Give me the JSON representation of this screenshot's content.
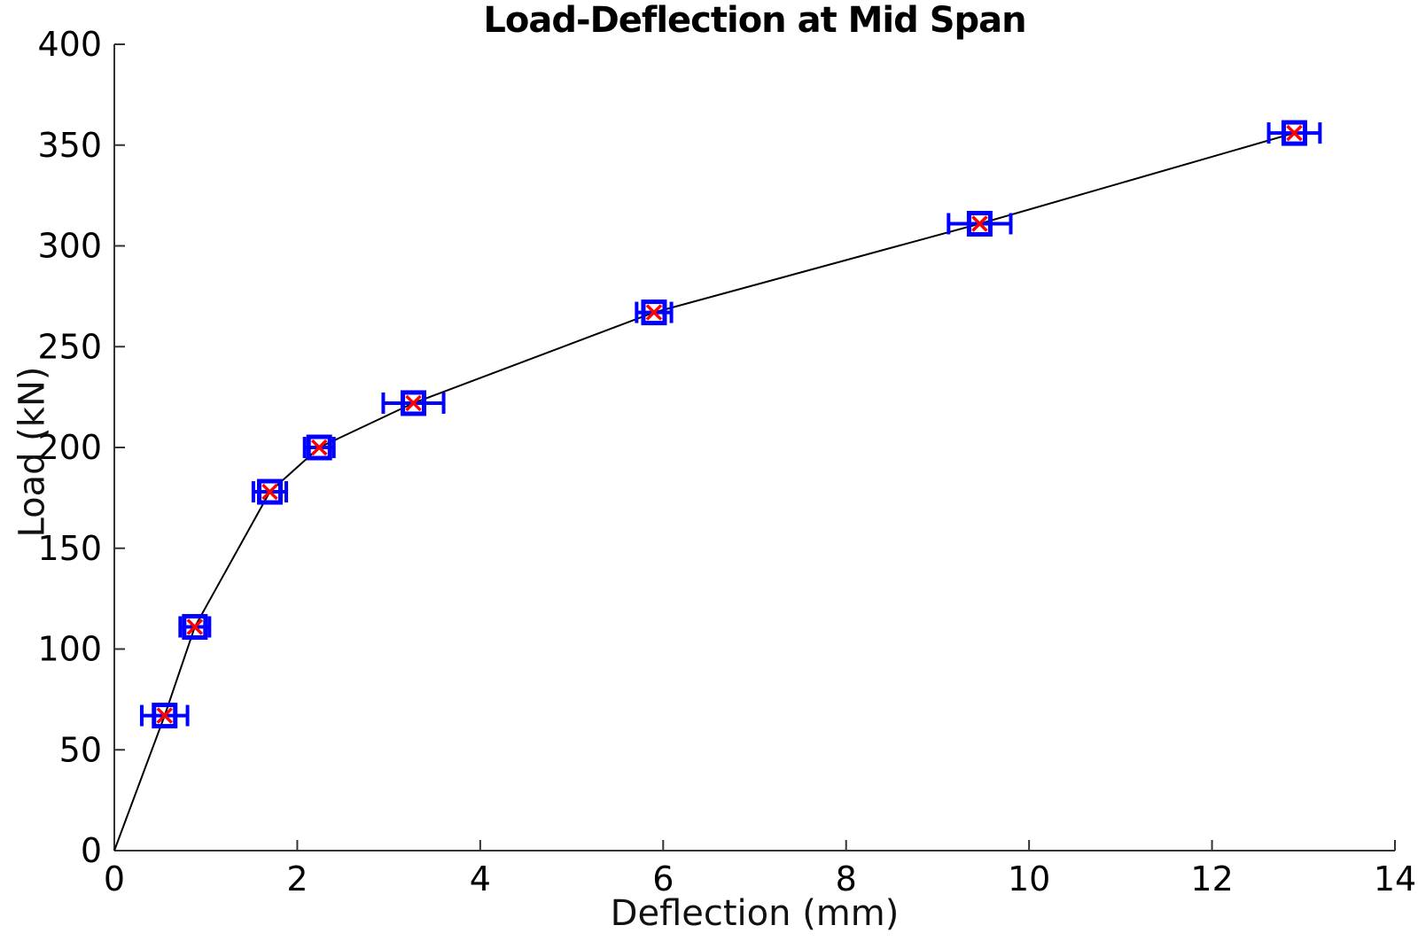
{
  "page": {
    "background": "#ffffff"
  },
  "chart_data": {
    "type": "line",
    "title": "Load-Deflection at Mid Span",
    "xlabel": "Deflection (mm)",
    "ylabel": "Load (kN)",
    "xlim": [
      0,
      14
    ],
    "ylim": [
      0,
      400
    ],
    "xticks": [
      0,
      2,
      4,
      6,
      8,
      10,
      12,
      14
    ],
    "yticks": [
      0,
      50,
      100,
      150,
      200,
      250,
      300,
      350,
      400
    ],
    "grid": false,
    "legend": false,
    "axis_color": "#333333",
    "line_origin": [
      0,
      0
    ],
    "series": [
      {
        "line_color": "#000000",
        "marker": "open-square-with-x",
        "marker_color": "#0000ff",
        "marker_x_color": "#ff0000",
        "errorbar_axis": "x",
        "errorbar_color": "#0000ff",
        "points": [
          {
            "x": 0.55,
            "y": 67,
            "xerr": 0.25
          },
          {
            "x": 0.88,
            "y": 111,
            "xerr": 0.16
          },
          {
            "x": 1.7,
            "y": 178,
            "xerr": 0.18
          },
          {
            "x": 2.24,
            "y": 200,
            "xerr": 0.16
          },
          {
            "x": 3.27,
            "y": 222,
            "xerr": 0.33
          },
          {
            "x": 5.9,
            "y": 267,
            "xerr": 0.19
          },
          {
            "x": 9.46,
            "y": 311,
            "xerr": 0.34
          },
          {
            "x": 12.9,
            "y": 356,
            "xerr": 0.28
          }
        ]
      }
    ]
  }
}
